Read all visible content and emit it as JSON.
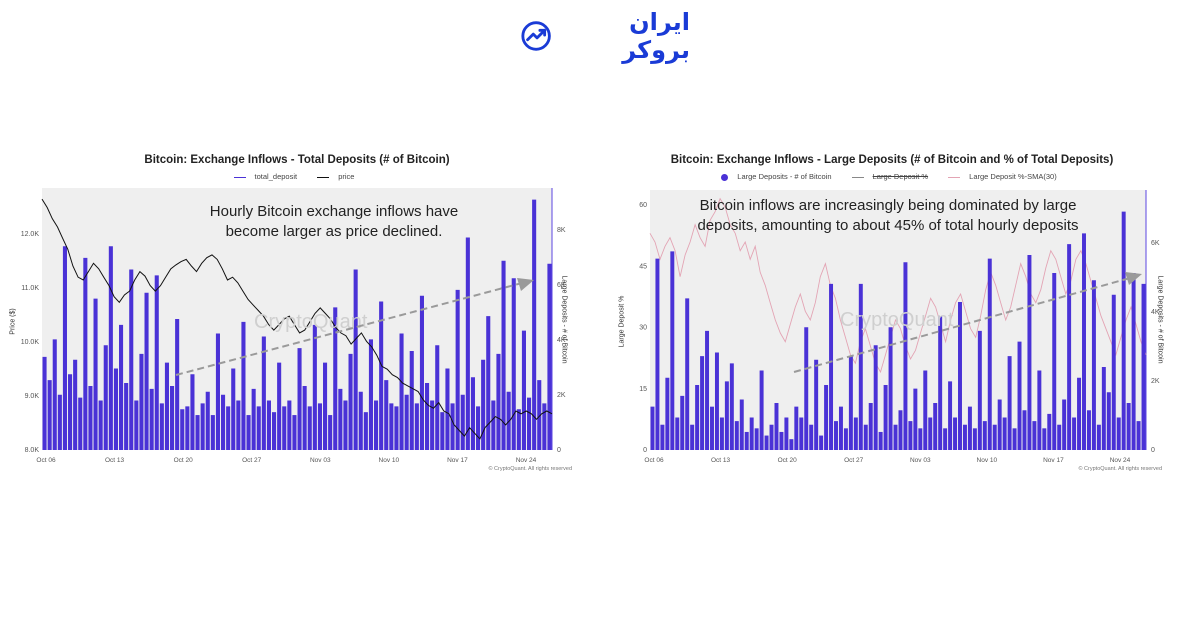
{
  "logo": {
    "text": "ایران بروکر",
    "icon": "chart-growth-icon",
    "color": "#1a3bd6"
  },
  "colors": {
    "deposit": "#4a32d6",
    "price": "#111111",
    "pct_faint": "#e3a4b4",
    "plot_bg": "#efefef",
    "arrow": "#9a9a9a"
  },
  "chart_data": [
    {
      "type": "line",
      "title": "Bitcoin: Exchange Inflows - Total Deposits (# of Bitcoin)",
      "legend": [
        "total_deposit",
        "price"
      ],
      "annotation": [
        "Hourly Bitcoin exchange inflows have",
        "become larger as price declined."
      ],
      "watermark": "CryptoQuant",
      "credit": "© CryptoQuant. All rights reserved",
      "ylabel_left": "Price ($)",
      "ylabel_right": "Large Deposits - # of Bitcoin",
      "x_ticks": [
        "Oct 06",
        "Oct 13",
        "Oct 20",
        "Oct 27",
        "Nov 03",
        "Nov 10",
        "Nov 17",
        "Nov 24"
      ],
      "y_left_ticks": [
        "12.0K",
        "11.0K",
        "10.0K",
        "9.0K",
        "8.0K"
      ],
      "y_left_lim": [
        80000,
        127000
      ],
      "y_right_ticks": [
        "8K",
        "6K",
        "4K",
        "2K",
        "0"
      ],
      "y_right_lim": [
        0,
        9000
      ],
      "grid": false,
      "series": [
        {
          "name": "total_deposit",
          "values": [
            3200,
            2400,
            3800,
            1900,
            7000,
            2600,
            3100,
            1800,
            6600,
            2200,
            5200,
            1700,
            3600,
            7000,
            2800,
            4300,
            2300,
            6200,
            1700,
            3300,
            5400,
            2100,
            6000,
            1600,
            3000,
            2200,
            4500,
            1400,
            1500,
            2600,
            1200,
            1600,
            2000,
            1200,
            4000,
            1900,
            1500,
            2800,
            1700,
            4400,
            1200,
            2100,
            1500,
            3900,
            1700,
            1300,
            3000,
            1500,
            1700,
            1200,
            3500,
            2200,
            1500,
            4300,
            1600,
            3000,
            1200,
            4900,
            2100,
            1700,
            3300,
            6200,
            2000,
            1300,
            3800,
            1700,
            5100,
            2400,
            1600,
            1500,
            4000,
            1900,
            3400,
            1600,
            5300,
            2300,
            1700,
            3600,
            1300,
            2800,
            1600,
            5500,
            1900,
            7300,
            2500,
            1500,
            3100,
            4600,
            1700,
            3300,
            6500,
            2000,
            5900,
            1400,
            4100,
            1800,
            8600,
            2400,
            1600,
            6400
          ]
        },
        {
          "name": "price",
          "values": [
            125000,
            123500,
            121500,
            120000,
            118000,
            116000,
            113000,
            111000,
            110500,
            112000,
            113500,
            112500,
            111000,
            109500,
            107500,
            106500,
            107800,
            108500,
            110500,
            112000,
            111200,
            109500,
            108500,
            109500,
            111000,
            112500,
            113200,
            113800,
            114200,
            113000,
            112000,
            113500,
            114500,
            115000,
            114200,
            112500,
            110500,
            111000,
            110000,
            108500,
            107000,
            106000,
            105000,
            104000,
            102500,
            101500,
            102500,
            103500,
            104000,
            102500,
            101000,
            101500,
            103000,
            104500,
            105500,
            104500,
            103500,
            102000,
            101000,
            100500,
            99000,
            100000,
            101000,
            99500,
            98500,
            97000,
            95000,
            94500,
            93500,
            93000,
            92000,
            91500,
            91000,
            90500,
            89000,
            88000,
            87500,
            88500,
            87000,
            86500,
            84500,
            83500,
            82500,
            84000,
            83000,
            82000,
            84000,
            85000,
            86000,
            85500,
            84500,
            85500,
            87000,
            86500,
            87000,
            86500,
            85500,
            86500,
            87000,
            86500
          ]
        }
      ]
    },
    {
      "type": "line",
      "title": "Bitcoin: Exchange Inflows - Large Deposits (# of Bitcoin and % of Total Deposits)",
      "legend": [
        "Large Deposits - # of Bitcoin",
        "Large Deposit %",
        "Large Deposit %-SMA(30)"
      ],
      "annotation": [
        "Bitcoin inflows are increasingly being dominated by large",
        "deposits, amounting to about 45% of total hourly deposits"
      ],
      "watermark": "CryptoQuant",
      "credit": "© CryptoQuant. All rights reserved",
      "ylabel_left": "Large Deposit %",
      "ylabel_right": "Large Deposits - # of Bitcoin",
      "x_ticks": [
        "Oct 06",
        "Oct 13",
        "Oct 20",
        "Oct 27",
        "Nov 03",
        "Nov 10",
        "Nov 17",
        "Nov 24"
      ],
      "y_left_ticks": [
        "60",
        "45",
        "30",
        "15",
        "0"
      ],
      "y_left_lim": [
        0,
        60
      ],
      "y_right_ticks": [
        "6K",
        "4K",
        "2K",
        "0"
      ],
      "y_right_lim": [
        0,
        7200
      ],
      "grid": false,
      "series": [
        {
          "name": "Large Deposits - # of Bitcoin",
          "values": [
            1200,
            5300,
            700,
            2000,
            5500,
            900,
            1500,
            4200,
            700,
            1800,
            2600,
            3300,
            1200,
            2700,
            900,
            1900,
            2400,
            800,
            1400,
            500,
            900,
            600,
            2200,
            400,
            700,
            1300,
            500,
            900,
            300,
            1200,
            900,
            3400,
            700,
            2500,
            400,
            1800,
            4600,
            800,
            1200,
            600,
            2600,
            900,
            4600,
            700,
            1300,
            2900,
            500,
            1800,
            3400,
            700,
            1100,
            5200,
            800,
            1700,
            600,
            2200,
            900,
            1300,
            3700,
            600,
            1900,
            900,
            4100,
            700,
            1200,
            600,
            3300,
            800,
            5300,
            700,
            1400,
            900,
            2600,
            600,
            3000,
            1100,
            5400,
            800,
            2200,
            600,
            1000,
            4900,
            700,
            1400,
            5700,
            900,
            2000,
            6000,
            1100,
            4700,
            700,
            2300,
            1600,
            4300,
            900,
            6600,
            1300,
            4900,
            800,
            4600
          ]
        },
        {
          "name": "Large Deposit %",
          "values": [
            50,
            48,
            44,
            47,
            49,
            46,
            40,
            45,
            48,
            52,
            49,
            47,
            53,
            55,
            58,
            56,
            52,
            50,
            46,
            48,
            44,
            47,
            41,
            38,
            34,
            30,
            27,
            25,
            29,
            33,
            36,
            32,
            30,
            34,
            40,
            43,
            38,
            35,
            30,
            26,
            22,
            20,
            25,
            28,
            24,
            20,
            18,
            22,
            26,
            30,
            28,
            24,
            21,
            23,
            27,
            31,
            35,
            33,
            29,
            25,
            30,
            34,
            36,
            32,
            28,
            26,
            31,
            37,
            41,
            38,
            34,
            30,
            33,
            38,
            43,
            40,
            36,
            34,
            37,
            42,
            46,
            44,
            40,
            36,
            39,
            44,
            46,
            43,
            39,
            35,
            31,
            28,
            25,
            22,
            26,
            30,
            33,
            29,
            25,
            22
          ]
        }
      ]
    }
  ]
}
